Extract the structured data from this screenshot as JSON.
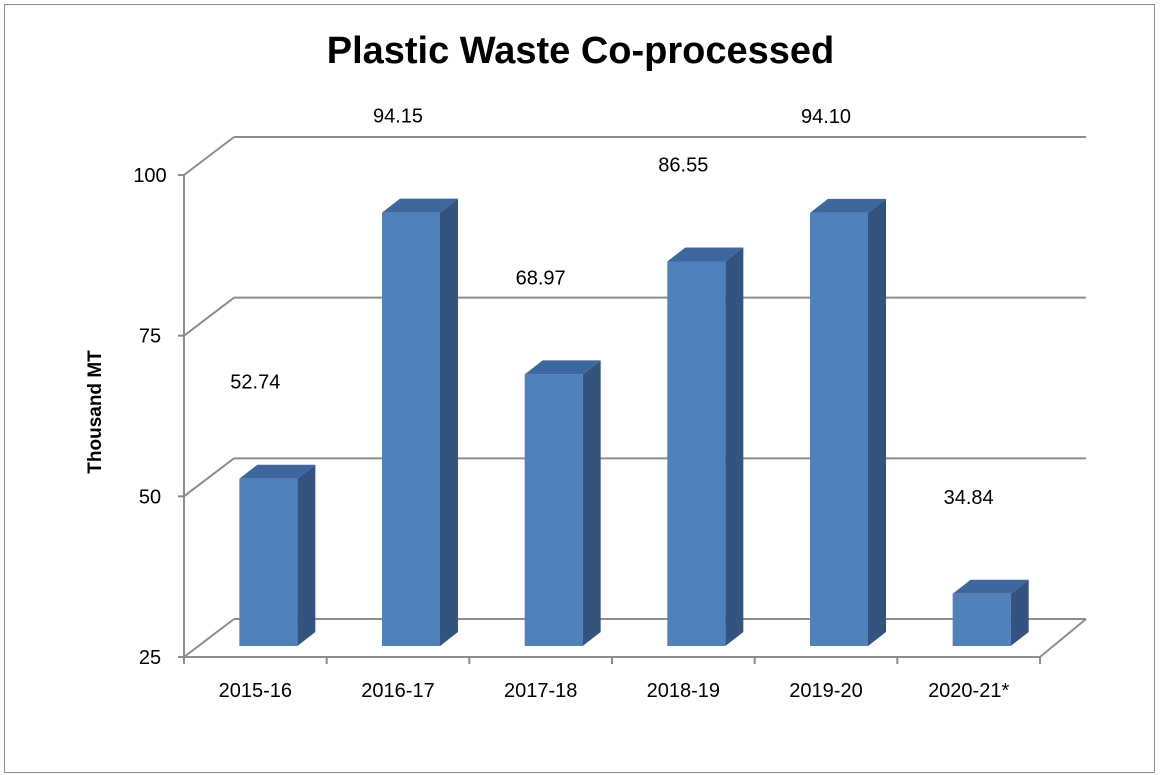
{
  "chart_data": {
    "type": "bar",
    "title": "Plastic Waste Co-processed",
    "xlabel": "",
    "ylabel": "Thousand MT",
    "categories": [
      "2015-16",
      "2016-17",
      "2017-18",
      "2018-19",
      "2019-20",
      "2020-21*"
    ],
    "series": [
      {
        "values": [
          52.74,
          94.15,
          68.97,
          86.55,
          94.1,
          34.84
        ]
      }
    ],
    "data_labels": [
      "52.74",
      "94.15",
      "68.97",
      "86.55",
      "94.10",
      "34.84"
    ],
    "ylim": [
      25,
      100
    ],
    "yticks": [
      25,
      50,
      75,
      100
    ],
    "grid": true,
    "style": "3d-column",
    "colors": {
      "bar_front": "#4f81bd",
      "bar_side": "#34537f",
      "bar_top": "#3c679f",
      "grid": "#8c8c8c"
    }
  }
}
